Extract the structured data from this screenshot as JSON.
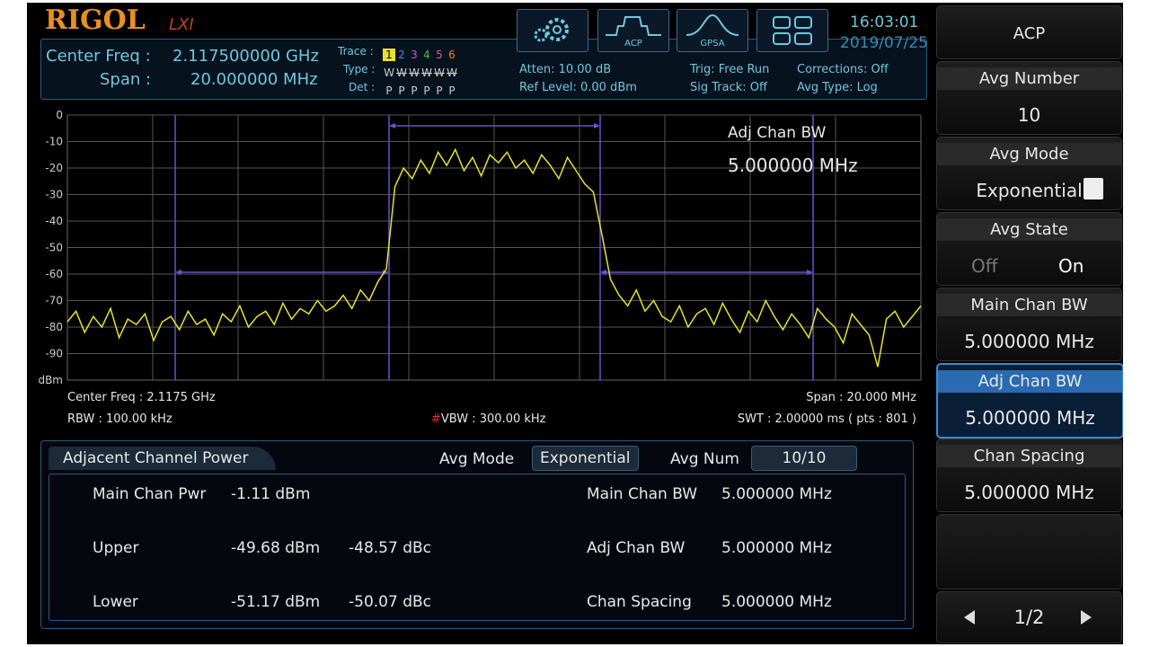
{
  "header": {
    "logo": "RIGOL",
    "lxi": "LXI",
    "center_freq_label": "Center Freq :",
    "center_freq": "2.117500000 GHz",
    "span_label": "Span :",
    "span": "20.000000 MHz",
    "trace_label": "Trace :",
    "traces": [
      "1",
      "2",
      "3",
      "4",
      "5",
      "6"
    ],
    "type_label": "Type :",
    "types": [
      "W",
      "W",
      "W",
      "W",
      "W",
      "W"
    ],
    "det_label": "Det :",
    "dets": [
      "P",
      "P",
      "P",
      "P",
      "P",
      "P"
    ],
    "atten": "Atten: 10.00 dB",
    "ref_level": "Ref Level: 0.00 dBm",
    "trig": "Trig: Free Run",
    "sig_track": "Sig Track: Off",
    "corrections": "Corrections: Off",
    "avg_type": "Avg Type: Log",
    "icons": [
      "ACP",
      "GPSA"
    ],
    "time": "16:03:01",
    "date": "2019/07/25"
  },
  "chart_data": {
    "type": "line",
    "y_unit": "dBm",
    "ylim": [
      -100,
      0
    ],
    "yticks": [
      0,
      -10,
      -20,
      -30,
      -40,
      -50,
      -60,
      -70,
      -80,
      -90
    ],
    "grid": true,
    "color": "#e8e030",
    "annotation": {
      "label": "Adj Chan BW",
      "value": "5.000000 MHz"
    },
    "values": [
      -78,
      -74,
      -82,
      -76,
      -80,
      -73,
      -84,
      -77,
      -79,
      -75,
      -85,
      -78,
      -76,
      -81,
      -74,
      -79,
      -77,
      -83,
      -75,
      -78,
      -72,
      -80,
      -76,
      -74,
      -79,
      -71,
      -77,
      -73,
      -75,
      -70,
      -74,
      -72,
      -68,
      -73,
      -66,
      -70,
      -63,
      -58,
      -27,
      -20,
      -24,
      -17,
      -22,
      -14,
      -19,
      -13,
      -21,
      -16,
      -23,
      -15,
      -18,
      -14,
      -20,
      -17,
      -22,
      -15,
      -19,
      -24,
      -16,
      -21,
      -26,
      -29,
      -45,
      -62,
      -68,
      -72,
      -66,
      -74,
      -70,
      -76,
      -78,
      -72,
      -80,
      -75,
      -73,
      -79,
      -71,
      -77,
      -82,
      -74,
      -78,
      -70,
      -76,
      -81,
      -75,
      -79,
      -84,
      -73,
      -77,
      -80,
      -86,
      -75,
      -79,
      -83,
      -95,
      -77,
      -74,
      -80,
      -76,
      -72
    ]
  },
  "status": {
    "center_freq": "Center Freq : 2.1175 GHz",
    "rbw": "RBW : 100.00 kHz",
    "vbw_flag": "#",
    "vbw": "VBW : 300.00 kHz",
    "span": "Span : 20.000 MHz",
    "swt": "SWT : 2.00000 ms ( pts : 801 )"
  },
  "acp": {
    "title": "Adjacent Channel Power",
    "avg_mode_label": "Avg Mode",
    "avg_mode": "Exponential",
    "avg_num_label": "Avg Num",
    "avg_num": "10/10",
    "rows": [
      {
        "label": "Main Chan Pwr",
        "power": "-1.11 dBm",
        "param_label": "Main Chan BW",
        "param_value": "5.000000 MHz"
      },
      {
        "label": "Upper",
        "power": "-49.68 dBm",
        "relative": "-48.57 dBc",
        "param_label": "Adj Chan BW",
        "param_value": "5.000000 MHz"
      },
      {
        "label": "Lower",
        "power": "-51.17 dBm",
        "relative": "-50.07 dBc",
        "param_label": "Chan Spacing",
        "param_value": "5.000000 MHz"
      }
    ]
  },
  "softkeys": [
    {
      "label": "ACP"
    },
    {
      "label": "Avg Number",
      "value": "10"
    },
    {
      "label": "Avg Mode",
      "value": "Exponential"
    },
    {
      "label": "Avg State",
      "options": [
        "Off",
        "On"
      ]
    },
    {
      "label": "Main Chan BW",
      "value": "5.000000 MHz"
    },
    {
      "label": "Adj Chan BW",
      "value": "5.000000 MHz",
      "selected": true
    },
    {
      "label": "Chan Spacing",
      "value": "5.000000 MHz"
    }
  ],
  "page": "1/2"
}
